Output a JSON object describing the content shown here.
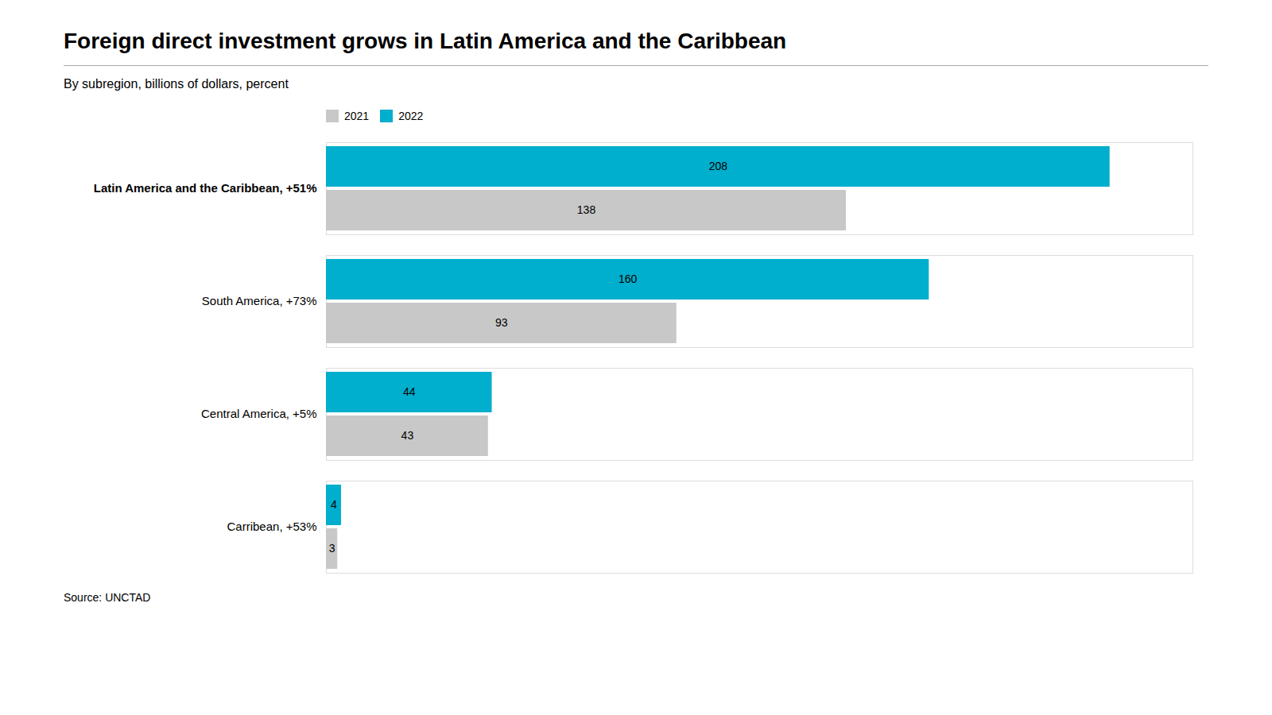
{
  "chart_data": {
    "type": "bar",
    "orientation": "horizontal",
    "title": "Foreign direct investment grows in Latin America and the Caribbean",
    "subtitle": "By subregion, billions of dollars, percent",
    "source": "Source: UNCTAD",
    "categories": [
      "Latin America and the Caribbean, +51%",
      "South America, +73%",
      "Central America, +5%",
      "Carribean, +53%"
    ],
    "series": [
      {
        "name": "2021",
        "color": "#C8C8C8",
        "values": [
          138,
          93,
          43,
          3
        ]
      },
      {
        "name": "2022",
        "color": "#00AECD",
        "values": [
          208,
          160,
          44,
          4
        ]
      }
    ],
    "xlim": [
      0,
      230
    ],
    "data_labels": true,
    "tick_labels": "y",
    "legend": "upper left",
    "grid": false
  }
}
